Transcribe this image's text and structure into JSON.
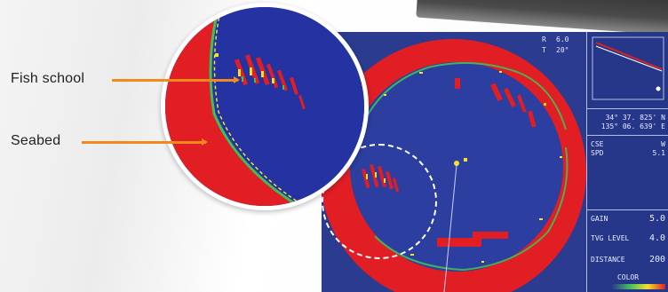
{
  "callouts": {
    "fish_school": "Fish school",
    "seabed": "Seabed"
  },
  "top_readout": {
    "r_label": "R",
    "r_value": "6.0",
    "t_label": "T",
    "t_value": "20°"
  },
  "side_panel": {
    "position_lat": "34° 37. 825' N",
    "position_lon": "135° 06. 639' E",
    "cse_label": "CSE",
    "spd_label": "SPD",
    "w_label": "W",
    "spd_value": "5.1",
    "gain_label": "GAIN",
    "gain_value": "5.0",
    "tvg_label": "TVG LEVEL",
    "tvg_value": "4.0",
    "distance_label": "DISTANCE",
    "distance_value": "200",
    "color_label": "COLOR"
  },
  "colors": {
    "screen_blue": "#2b3b8f",
    "echo_red": "#e01e24",
    "arrow_orange": "#f08a1c",
    "echo_yellow": "#f5e22a",
    "echo_green": "#3fbf5a"
  }
}
